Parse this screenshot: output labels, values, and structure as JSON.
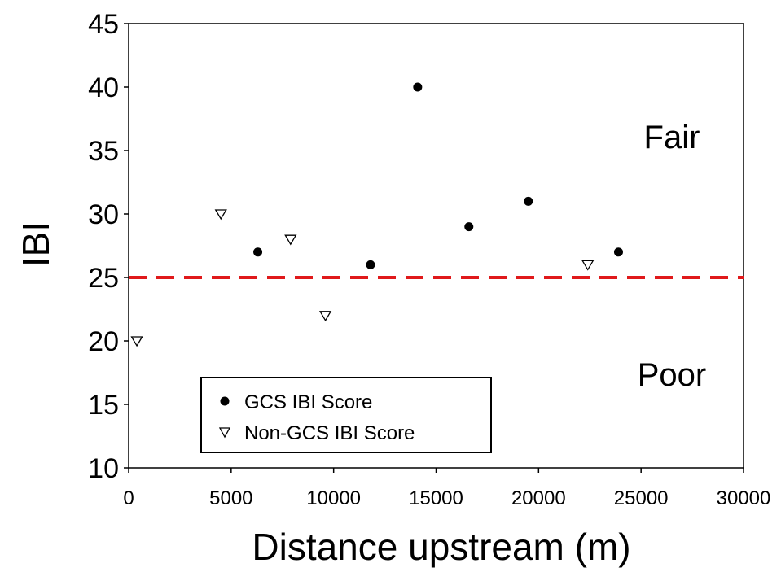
{
  "chart_data": {
    "type": "scatter",
    "xlabel": "Distance upstream (m)",
    "ylabel": "IBI",
    "xlim": [
      0,
      30000
    ],
    "ylim": [
      10,
      45
    ],
    "xticks": [
      "0",
      "5000",
      "10000",
      "15000",
      "20000",
      "25000",
      "30000"
    ],
    "yticks": [
      "10",
      "15",
      "20",
      "25",
      "30",
      "35",
      "40",
      "45"
    ],
    "grid": false,
    "legend_position": "bottom-left",
    "series": [
      {
        "name": "GCS IBI Score",
        "marker": "filled-circle",
        "color": "#000000",
        "points": [
          {
            "x": 6300,
            "y": 27
          },
          {
            "x": 11800,
            "y": 26
          },
          {
            "x": 14100,
            "y": 40
          },
          {
            "x": 16600,
            "y": 29
          },
          {
            "x": 19500,
            "y": 31
          },
          {
            "x": 23900,
            "y": 27
          }
        ]
      },
      {
        "name": "Non-GCS IBI Score",
        "marker": "open-triangle-down",
        "color": "#000000",
        "points": [
          {
            "x": 400,
            "y": 20
          },
          {
            "x": 4500,
            "y": 30
          },
          {
            "x": 7900,
            "y": 28
          },
          {
            "x": 9600,
            "y": 22
          },
          {
            "x": 22400,
            "y": 26
          }
        ]
      }
    ],
    "threshold": {
      "y": 25,
      "color": "#e0191b",
      "style": "dashed"
    },
    "annotations": [
      {
        "text": "Fair",
        "region": "above-threshold"
      },
      {
        "text": "Poor",
        "region": "below-threshold"
      }
    ]
  }
}
